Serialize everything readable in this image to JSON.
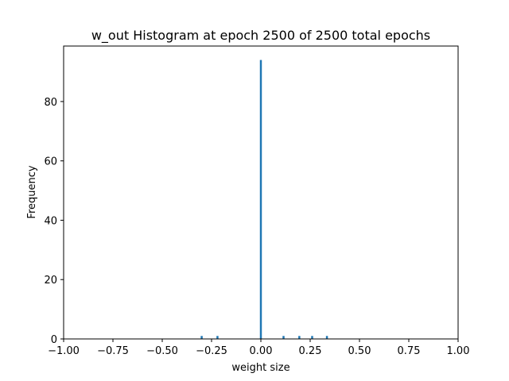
{
  "chart_data": {
    "type": "bar",
    "title": "w_out Histogram at epoch 2500 of 2500 total epochs",
    "xlabel": "weight size",
    "ylabel": "Frequency",
    "xlim": [
      -1.0,
      1.0
    ],
    "ylim": [
      0,
      98.7
    ],
    "grid": false,
    "legend": "none",
    "x_ticks": [
      -1.0,
      -0.75,
      -0.5,
      -0.25,
      0.0,
      0.25,
      0.5,
      0.75,
      1.0
    ],
    "x_tick_labels": [
      "−1.00",
      "−0.75",
      "−0.50",
      "−0.25",
      "0.00",
      "0.25",
      "0.50",
      "0.75",
      "1.00"
    ],
    "y_ticks": [
      0,
      20,
      40,
      60,
      80
    ],
    "y_tick_labels": [
      "0",
      "20",
      "40",
      "60",
      "80"
    ],
    "bar_color": "#1f77b4",
    "bin_width": 0.01,
    "bins": [
      {
        "x": -0.3,
        "count": 1
      },
      {
        "x": -0.22,
        "count": 1
      },
      {
        "x": 0.0,
        "count": 94
      },
      {
        "x": 0.115,
        "count": 1
      },
      {
        "x": 0.195,
        "count": 1
      },
      {
        "x": 0.26,
        "count": 1
      },
      {
        "x": 0.335,
        "count": 1
      }
    ]
  }
}
